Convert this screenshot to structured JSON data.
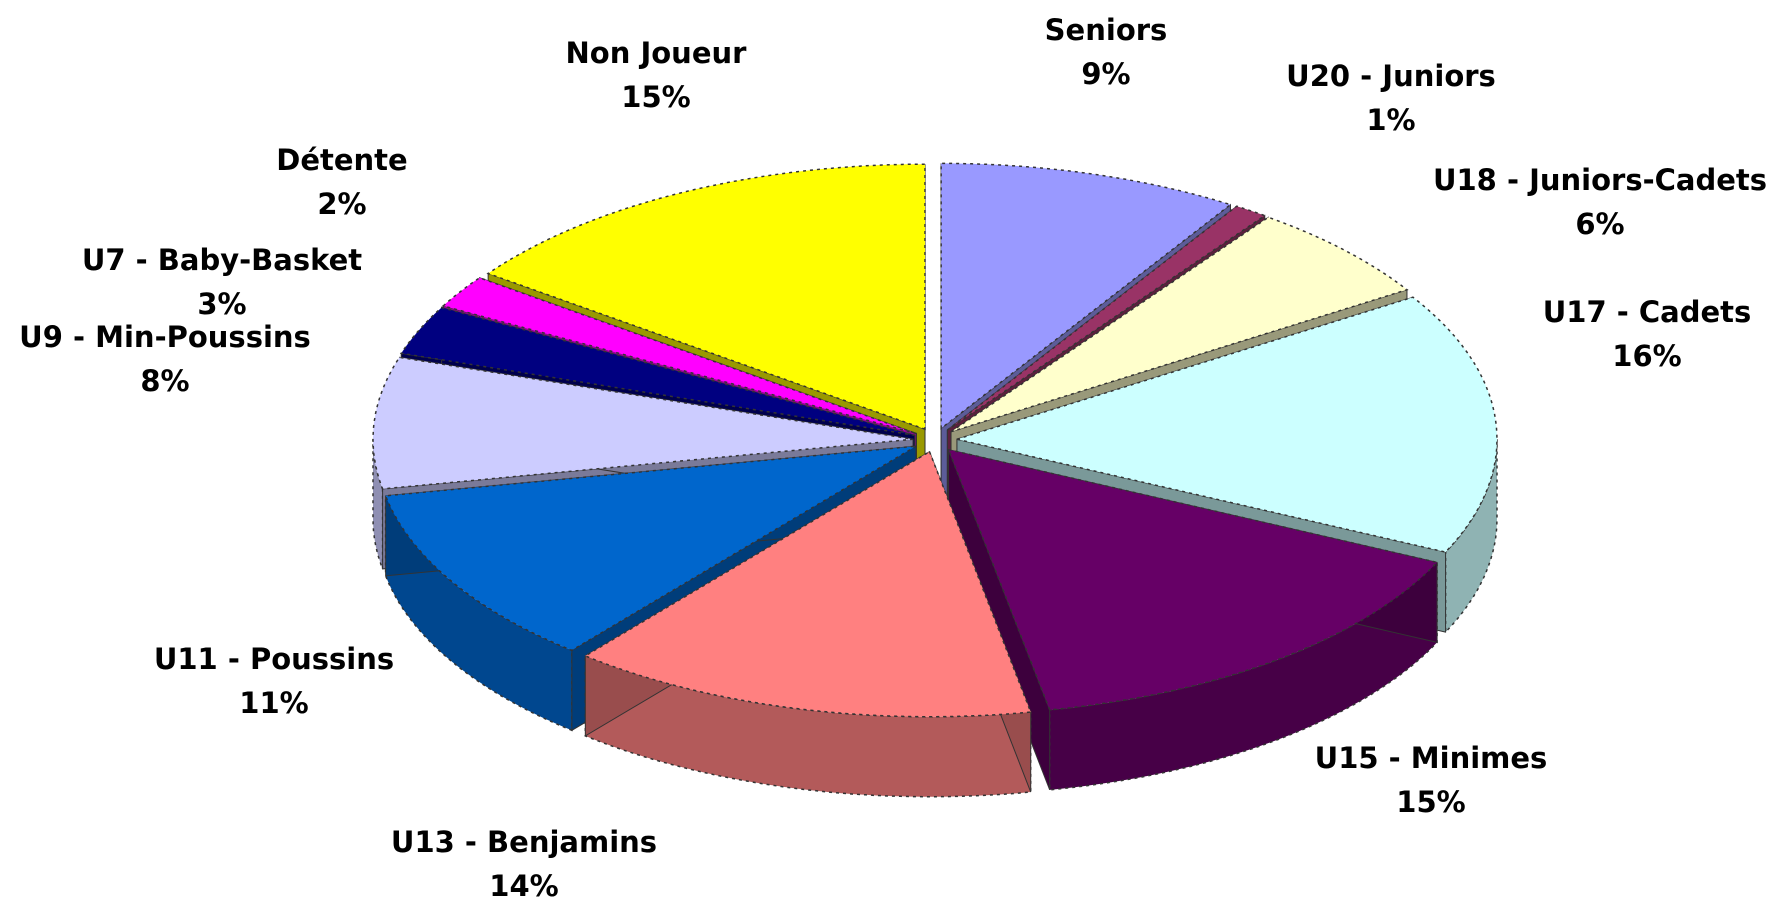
{
  "chart_data": {
    "type": "pie",
    "categories": [
      "Seniors",
      "U20 - Juniors",
      "U18 - Juniors-Cadets",
      "U17 - Cadets",
      "U15 - Minimes",
      "U13 - Benjamins",
      "U11 - Poussins",
      "U9 - Min-Poussins",
      "U7 - Baby-Basket",
      "Détente",
      "Non Joueur"
    ],
    "values": [
      9,
      1,
      6,
      16,
      15,
      14,
      11,
      8,
      3,
      2,
      15
    ],
    "value_labels": [
      "9%",
      "1%",
      "6%",
      "16%",
      "15%",
      "14%",
      "11%",
      "8%",
      "3%",
      "2%",
      "15%"
    ],
    "colors": [
      "#9999ff",
      "#993366",
      "#ffffcc",
      "#ccffff",
      "#660066",
      "#ff8080",
      "#0066cc",
      "#ccccff",
      "#000080",
      "#ff00ff",
      "#ffff00"
    ]
  }
}
